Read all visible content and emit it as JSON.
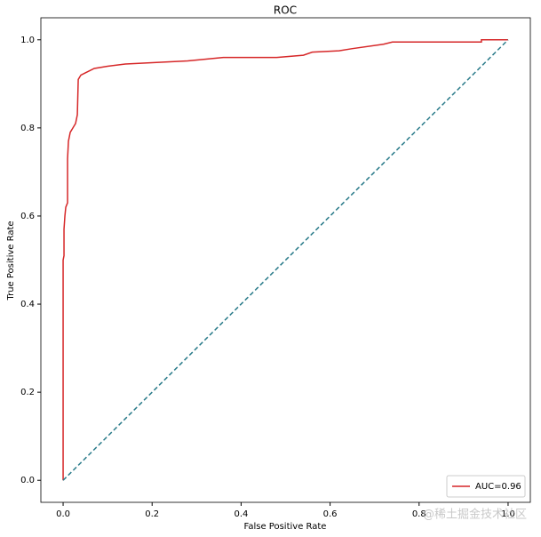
{
  "chart_data": {
    "type": "line",
    "title": "ROC",
    "xlabel": "False Positive Rate",
    "ylabel": "True Positive Rate",
    "xlim": [
      -0.05,
      1.05
    ],
    "ylim": [
      -0.05,
      1.05
    ],
    "xticks": [
      {
        "value": 0,
        "label": "0.0"
      },
      {
        "value": 0.2,
        "label": "0.2"
      },
      {
        "value": 0.4,
        "label": "0.4"
      },
      {
        "value": 0.6,
        "label": "0.6"
      },
      {
        "value": 0.8,
        "label": "0.8"
      },
      {
        "value": 1,
        "label": "1.0"
      }
    ],
    "yticks": [
      {
        "value": 0,
        "label": "0.0"
      },
      {
        "value": 0.2,
        "label": "0.2"
      },
      {
        "value": 0.4,
        "label": "0.4"
      },
      {
        "value": 0.6,
        "label": "0.6"
      },
      {
        "value": 0.8,
        "label": "0.8"
      },
      {
        "value": 1,
        "label": "1.0"
      }
    ],
    "legend": "lower right",
    "series": [
      {
        "name": "AUC=0.96",
        "color": "#d62728",
        "dashed": false,
        "x": [
          0,
          0,
          0.002,
          0.002,
          0.004,
          0.006,
          0.01,
          0.01,
          0.012,
          0.016,
          0.022,
          0.028,
          0.032,
          0.034,
          0.04,
          0.05,
          0.07,
          0.1,
          0.14,
          0.2,
          0.28,
          0.36,
          0.48,
          0.54,
          0.56,
          0.62,
          0.65,
          0.72,
          0.74,
          0.94,
          0.94,
          1.0
        ],
        "values": [
          0,
          0.5,
          0.51,
          0.57,
          0.6,
          0.62,
          0.63,
          0.73,
          0.77,
          0.79,
          0.8,
          0.81,
          0.83,
          0.91,
          0.92,
          0.925,
          0.935,
          0.94,
          0.945,
          0.948,
          0.952,
          0.96,
          0.96,
          0.965,
          0.972,
          0.975,
          0.98,
          0.99,
          0.995,
          0.995,
          1.0,
          1.0
        ]
      },
      {
        "color": "#2a7b8a",
        "dashed": true,
        "x": [
          0,
          1
        ],
        "values": [
          0,
          1
        ]
      }
    ],
    "watermark": "@稀土掘金技术社区"
  }
}
